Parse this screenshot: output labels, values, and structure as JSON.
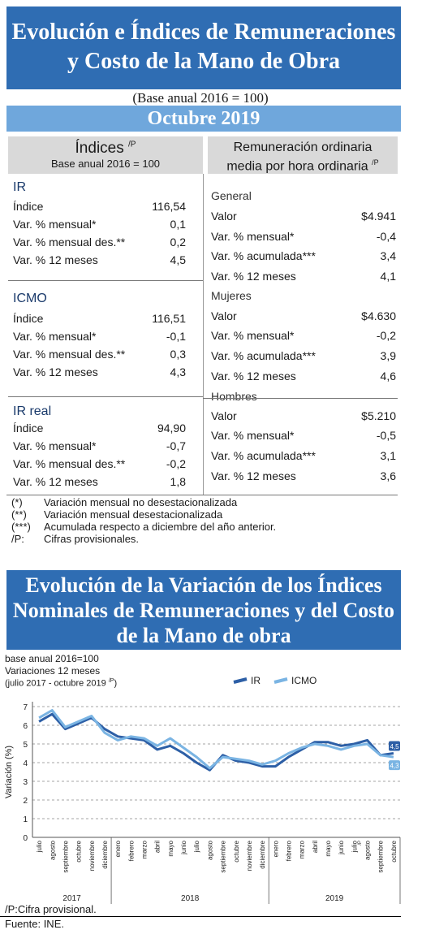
{
  "title": {
    "line1": "Evolución e Índices de Remuneraciones",
    "line2": "y Costo de la Mano de Obra"
  },
  "base_note": "(Base anual 2016 = 100)",
  "period": "Octubre 2019",
  "left_header": {
    "title": "Índices",
    "sup": "/P",
    "sub": "Base anual 2016 = 100"
  },
  "right_header": {
    "line1": "Remuneración ordinaria",
    "line2": "media por hora ordinaria",
    "sup": "/P"
  },
  "indices": [
    {
      "name": "IR",
      "rows": [
        {
          "label": "Índice",
          "value": "116,54"
        },
        {
          "label": "Var. % mensual*",
          "value": "0,1"
        },
        {
          "label": "Var. % mensual des.**",
          "value": "0,2"
        },
        {
          "label": "Var. % 12 meses",
          "value": "4,5"
        }
      ]
    },
    {
      "name": "ICMO",
      "rows": [
        {
          "label": "Índice",
          "value": "116,51"
        },
        {
          "label": "Var. % mensual*",
          "value": "-0,1"
        },
        {
          "label": "Var. % mensual des.**",
          "value": "0,3"
        },
        {
          "label": "Var. % 12 meses",
          "value": "4,3"
        }
      ]
    },
    {
      "name": "IR real",
      "rows": [
        {
          "label": "Índice",
          "value": "94,90"
        },
        {
          "label": "Var. % mensual*",
          "value": "-0,7"
        },
        {
          "label": "Var. % mensual des.**",
          "value": "-0,2"
        },
        {
          "label": "Var. % 12 meses",
          "value": "1,8"
        }
      ]
    }
  ],
  "remuneracion": [
    {
      "name": "General",
      "rows": [
        {
          "label": "Valor",
          "value": "$4.941"
        },
        {
          "label": "Var. % mensual*",
          "value": "-0,4"
        },
        {
          "label": "Var. % acumulada***",
          "value": "3,4"
        },
        {
          "label": "Var. % 12 meses",
          "value": "4,1"
        }
      ]
    },
    {
      "name": "Mujeres",
      "rows": [
        {
          "label": "Valor",
          "value": "$4.630"
        },
        {
          "label": "Var. % mensual*",
          "value": "-0,2"
        },
        {
          "label": "Var. % acumulada***",
          "value": "3,9"
        },
        {
          "label": "Var. % 12 meses",
          "value": "4,6"
        }
      ]
    },
    {
      "name": "Hombres",
      "rows": [
        {
          "label": "Valor",
          "value": "$5.210"
        },
        {
          "label": "Var. % mensual*",
          "value": "-0,5"
        },
        {
          "label": "Var. % acumulada***",
          "value": "3,1"
        },
        {
          "label": "Var. % 12 meses",
          "value": "3,6"
        }
      ]
    }
  ],
  "notes": [
    {
      "key": "(*)",
      "text": "Variación mensual no desestacionalizada"
    },
    {
      "key": "(**)",
      "text": "Variación mensual desestacionalizada"
    },
    {
      "key": "(***)",
      "text": "Acumulada respecto a diciembre del año anterior."
    },
    {
      "key": "/P:",
      "text": "Cifras provisionales."
    }
  ],
  "chart_title": {
    "line1": "Evolución de la Variación de los Índices",
    "line2": "Nominales de Remuneraciones y del Costo",
    "line3": "de la Mano de obra"
  },
  "chart_sub": {
    "line1": "base anual 2016=100",
    "line2": "Variaciones 12 meses",
    "line3": "(julio 2017 - octubre 2019",
    "line3_sup": "/P",
    "line3_end": ")"
  },
  "footer": {
    "provisional": "/P:Cifra provisional.",
    "source": "Fuente: INE."
  },
  "colors": {
    "title_bg": "#2f6db3",
    "period_bg": "#6fa7dc",
    "ir": "#2d5fa6",
    "icmo": "#7ab4e3"
  },
  "chart_data": {
    "type": "line",
    "ylabel": "Variación (%)",
    "ylim": [
      0,
      7
    ],
    "yticks": [
      0,
      1,
      2,
      3,
      4,
      5,
      6,
      7
    ],
    "grid": "horizontal dashed",
    "legend_position": "top-right",
    "x": [
      "julio",
      "agosto",
      "septiembre",
      "octubre",
      "noviembre",
      "diciembre",
      "enero",
      "febrero",
      "marzo",
      "abril",
      "mayo",
      "junio",
      "julio",
      "agosto",
      "septiembre",
      "octubre",
      "noviembre",
      "diciembre",
      "enero",
      "febrero",
      "marzo",
      "abril",
      "mayo",
      "junio",
      "julio",
      "agosto",
      "septiembre",
      "octubre"
    ],
    "last_x_sup": "/P",
    "years": [
      {
        "label": "2017",
        "from": 0,
        "to": 5
      },
      {
        "label": "2018",
        "from": 6,
        "to": 17
      },
      {
        "label": "2019",
        "from": 18,
        "to": 27
      }
    ],
    "series": [
      {
        "name": "IR",
        "values": [
          6.2,
          6.6,
          5.8,
          6.1,
          6.4,
          5.8,
          5.4,
          5.3,
          5.2,
          4.7,
          4.9,
          4.5,
          4.0,
          3.6,
          4.4,
          4.1,
          4.0,
          3.8,
          3.8,
          4.3,
          4.7,
          5.1,
          5.1,
          4.9,
          5.0,
          5.2,
          4.4,
          4.5
        ]
      },
      {
        "name": "ICMO",
        "values": [
          6.4,
          6.8,
          5.9,
          6.2,
          6.5,
          5.6,
          5.2,
          5.4,
          5.3,
          4.9,
          5.3,
          4.8,
          4.3,
          3.7,
          4.3,
          4.2,
          4.1,
          3.9,
          4.1,
          4.5,
          4.8,
          5.0,
          4.9,
          4.7,
          4.9,
          5.0,
          4.4,
          4.3
        ]
      }
    ],
    "end_labels": [
      {
        "series": "IR",
        "text": "4,5"
      },
      {
        "series": "ICMO",
        "text": "4,3"
      }
    ]
  }
}
